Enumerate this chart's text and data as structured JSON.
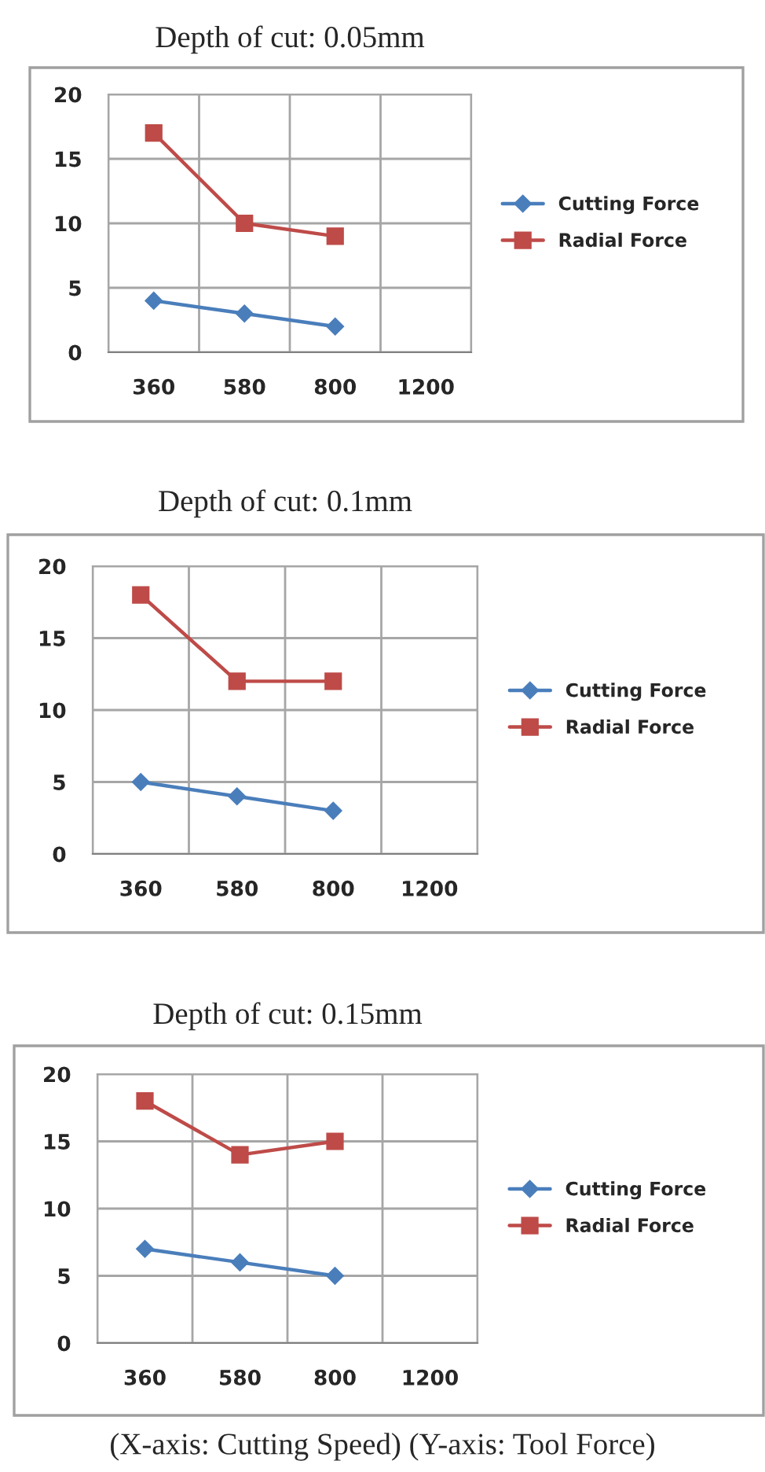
{
  "chart_data": [
    {
      "type": "line",
      "title": "Depth of cut: 0.05mm",
      "categories": [
        "360",
        "580",
        "800",
        "1200"
      ],
      "ylim": [
        0,
        20
      ],
      "yticks": [
        0,
        5,
        10,
        15,
        20
      ],
      "grid": true,
      "legend": "right",
      "series": [
        {
          "name": "Cutting Force",
          "color": "#4a7ebb",
          "marker": "diamond",
          "values": [
            4,
            3,
            2,
            null
          ]
        },
        {
          "name": "Radial Force",
          "color": "#be4b48",
          "marker": "square",
          "values": [
            17,
            10,
            9,
            null
          ]
        }
      ]
    },
    {
      "type": "line",
      "title": "Depth of cut: 0.1mm",
      "categories": [
        "360",
        "580",
        "800",
        "1200"
      ],
      "ylim": [
        0,
        20
      ],
      "yticks": [
        0,
        5,
        10,
        15,
        20
      ],
      "grid": true,
      "legend": "right",
      "series": [
        {
          "name": "Cutting Force",
          "color": "#4a7ebb",
          "marker": "diamond",
          "values": [
            5,
            4,
            3,
            null
          ]
        },
        {
          "name": "Radial Force",
          "color": "#be4b48",
          "marker": "square",
          "values": [
            18,
            12,
            12,
            null
          ]
        }
      ]
    },
    {
      "type": "line",
      "title": "Depth of cut: 0.15mm",
      "categories": [
        "360",
        "580",
        "800",
        "1200"
      ],
      "ylim": [
        0,
        20
      ],
      "yticks": [
        0,
        5,
        10,
        15,
        20
      ],
      "grid": true,
      "legend": "right",
      "annotations": [
        "(X-axis: Cutting Speed) (Y-axis: Tool Force)"
      ],
      "series": [
        {
          "name": "Cutting Force",
          "color": "#4a7ebb",
          "marker": "diamond",
          "values": [
            7,
            6,
            5,
            null
          ]
        },
        {
          "name": "Radial Force",
          "color": "#be4b48",
          "marker": "square",
          "values": [
            18,
            14,
            15,
            null
          ]
        }
      ]
    }
  ]
}
